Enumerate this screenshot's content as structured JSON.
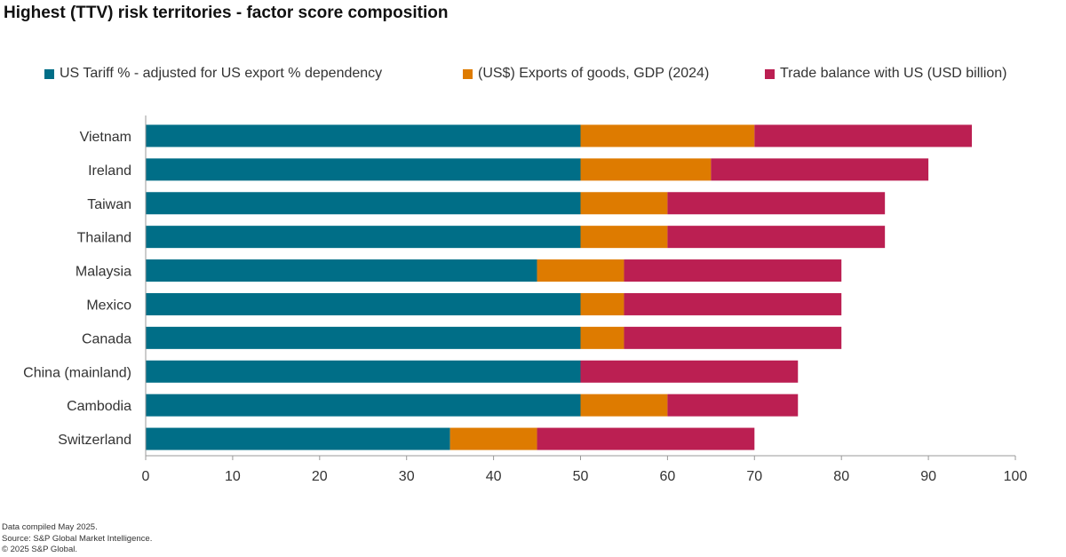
{
  "chart_data": {
    "type": "bar",
    "orientation": "horizontal",
    "stacked": true,
    "title": "Highest (TTV) risk territories - factor score composition",
    "categories": [
      "Vietnam",
      "Ireland",
      "Taiwan",
      "Thailand",
      "Malaysia",
      "Mexico",
      "Canada",
      "China (mainland)",
      "Cambodia",
      "Switzerland"
    ],
    "series": [
      {
        "name": "US Tariff % - adjusted for US export % dependency",
        "color": "#006E87",
        "values": [
          50,
          50,
          50,
          50,
          45,
          50,
          50,
          50,
          50,
          35
        ]
      },
      {
        "name": "(US$) Exports of goods, GDP (2024)",
        "color": "#DE7B00",
        "values": [
          20,
          15,
          10,
          10,
          10,
          5,
          5,
          0,
          10,
          10
        ]
      },
      {
        "name": "Trade balance with US (USD billion)",
        "color": "#BB1F52",
        "values": [
          25,
          25,
          25,
          25,
          25,
          25,
          25,
          25,
          15,
          25
        ]
      }
    ],
    "xlim": [
      0,
      100
    ],
    "xticks": [
      "0",
      "10",
      "20",
      "30",
      "40",
      "50",
      "60",
      "70",
      "80",
      "90",
      "100"
    ],
    "legend_position": "top",
    "grid": false
  },
  "footnotes": {
    "compiled": "Data compiled May 2025.",
    "source": "Source: S&P Global Market Intelligence.",
    "copyright": "© 2025 S&P Global."
  }
}
